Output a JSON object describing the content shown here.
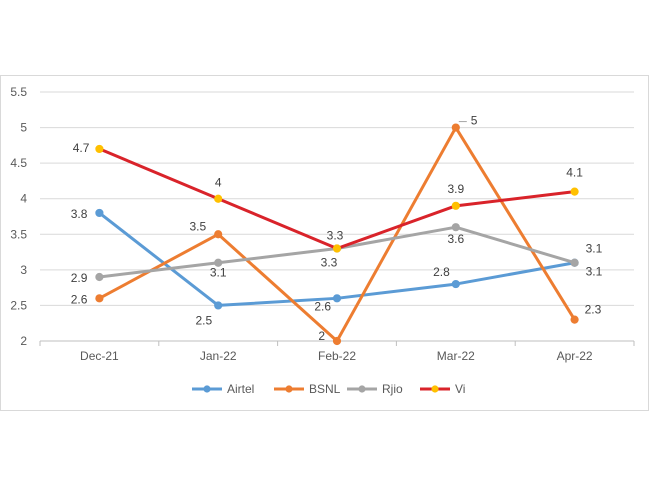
{
  "chart_data": {
    "type": "line",
    "categories": [
      "Dec-21",
      "Jan-22",
      "Feb-22",
      "Mar-22",
      "Apr-22"
    ],
    "ylim": [
      2,
      5.5
    ],
    "yticks": [
      "2",
      "2.5",
      "3",
      "3.5",
      "4",
      "4.5",
      "5",
      "5.5"
    ],
    "grid": true,
    "legend_position": "bottom",
    "series": [
      {
        "name": "Airtel",
        "color": "#5b9bd5",
        "marker_color": "#5b9bd5",
        "values": [
          3.8,
          2.5,
          2.6,
          2.8,
          3.1
        ],
        "labels": [
          "3.8",
          "2.5",
          "2.6",
          "2.8",
          "3.1"
        ]
      },
      {
        "name": "BSNL",
        "color": "#ed7d31",
        "marker_color": "#ed7d31",
        "values": [
          2.6,
          3.5,
          2,
          5,
          2.3
        ],
        "labels": [
          "2.6",
          "3.5",
          "2",
          "5",
          "2.3"
        ]
      },
      {
        "name": "Rjio",
        "color": "#a5a5a5",
        "marker_color": "#a5a5a5",
        "values": [
          2.9,
          3.1,
          3.3,
          3.6,
          3.1
        ],
        "labels": [
          "2.9",
          "3.1",
          "3.3",
          "3.6",
          "3.1"
        ]
      },
      {
        "name": "Vi",
        "color": "#d9232a",
        "marker_color": "#ffc000",
        "values": [
          4.7,
          4,
          3.3,
          3.9,
          4.1
        ],
        "labels": [
          "4.7",
          "4",
          "3.3",
          "3.9",
          "4.1"
        ]
      }
    ]
  }
}
